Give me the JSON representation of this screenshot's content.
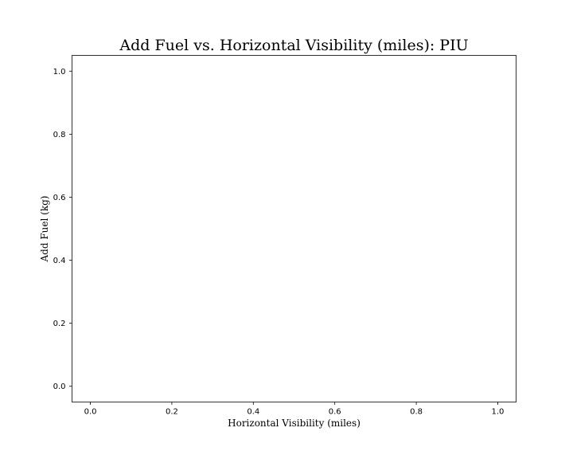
{
  "chart_data": {
    "type": "scatter",
    "title": "Add Fuel vs. Horizontal Visibility (miles): PIU",
    "xlabel": "Horizontal Visibility (miles)",
    "ylabel": "Add Fuel (kg)",
    "xlim": [
      -0.045,
      1.045
    ],
    "ylim": [
      -0.05,
      1.05
    ],
    "xticks": [
      0.0,
      0.2,
      0.4,
      0.6,
      0.8,
      1.0
    ],
    "yticks": [
      0.0,
      0.2,
      0.4,
      0.6,
      0.8,
      1.0
    ],
    "xtick_labels": [
      "0.0",
      "0.2",
      "0.4",
      "0.6",
      "0.8",
      "1.0"
    ],
    "ytick_labels": [
      "0.0",
      "0.2",
      "0.4",
      "0.6",
      "0.8",
      "1.0"
    ],
    "grid": false,
    "series": [
      {
        "x": [],
        "y": []
      }
    ]
  }
}
